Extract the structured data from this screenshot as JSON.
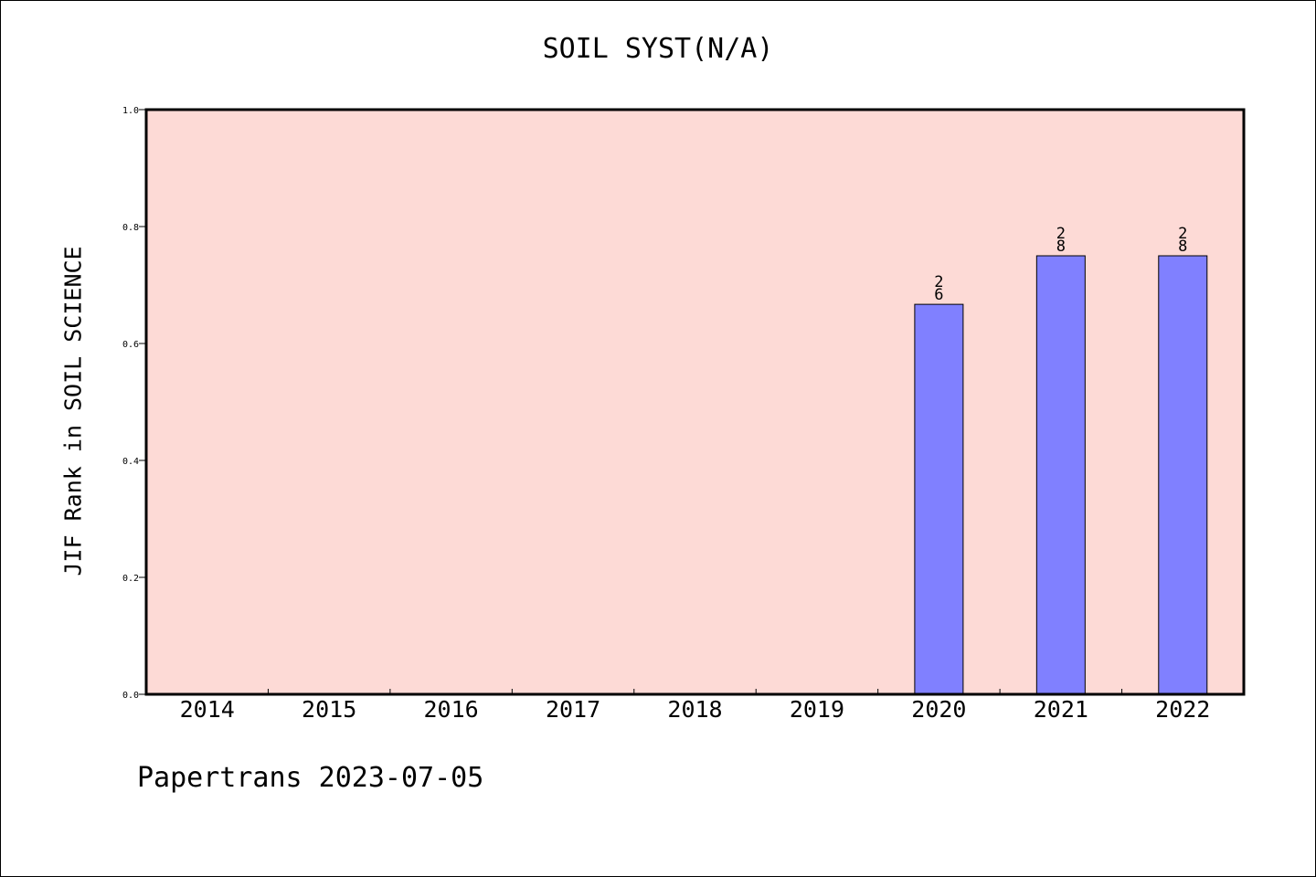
{
  "chart_data": {
    "type": "bar",
    "title": "SOIL SYST(N/A)",
    "ylabel": "JIF Rank in SOIL SCIENCE",
    "xlabel": "",
    "categories": [
      "2014",
      "2015",
      "2016",
      "2017",
      "2018",
      "2019",
      "2020",
      "2021",
      "2022"
    ],
    "values": [
      null,
      null,
      null,
      null,
      null,
      null,
      0.667,
      0.75,
      0.75
    ],
    "bar_labels": [
      [
        "",
        ""
      ],
      [
        "",
        ""
      ],
      [
        "",
        ""
      ],
      [
        "",
        ""
      ],
      [
        "",
        ""
      ],
      [
        "",
        ""
      ],
      [
        "2",
        "6"
      ],
      [
        "2",
        "8"
      ],
      [
        "2",
        "8"
      ]
    ],
    "ylim": [
      0,
      1.0
    ],
    "yticks": [
      "0.0",
      "0.2",
      "0.4",
      "0.6",
      "0.8",
      "1.0"
    ],
    "grid": false,
    "colors": {
      "bar": "#8080ff",
      "plot_bg": "#fddad6"
    }
  },
  "footer": "Papertrans 2023-07-05"
}
